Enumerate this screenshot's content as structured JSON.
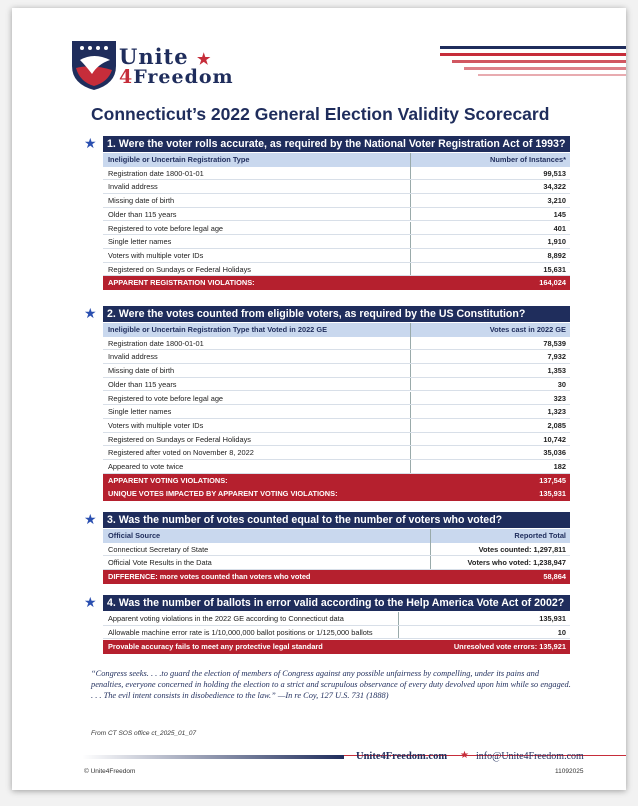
{
  "header": {
    "logo_word1": "Unite",
    "logo_number": "4",
    "logo_word2": "Freedom"
  },
  "title": "Connecticut’s 2022 General Election Validity Scorecard",
  "sections": [
    {
      "question": "1. Were the voter rolls accurate, as required by the National Voter Registration Act of 1993?",
      "columns": [
        "Ineligible or Uncertain Registration Type",
        "Number of Instances*"
      ],
      "rows": [
        [
          "Registration date 1800-01-01",
          "99,513"
        ],
        [
          "Invalid address",
          "34,322"
        ],
        [
          "Missing date of birth",
          "3,210"
        ],
        [
          "Older than 115 years",
          "145"
        ],
        [
          "Registered to vote before legal age",
          "401"
        ],
        [
          "Single letter names",
          "1,910"
        ],
        [
          "Voters with multiple voter IDs",
          "8,892"
        ],
        [
          "Registered on Sundays or Federal Holidays",
          "15,631"
        ]
      ],
      "totals": [
        [
          "APPARENT REGISTRATION VIOLATIONS:",
          "164,024"
        ]
      ]
    },
    {
      "question": "2. Were the votes counted from eligible voters, as required by the US Constitution?",
      "columns": [
        "Ineligible or Uncertain Registration Type that Voted in 2022 GE",
        "Votes cast in 2022 GE"
      ],
      "rows": [
        [
          "Registration date 1800-01-01",
          "78,539"
        ],
        [
          "Invalid address",
          "7,932"
        ],
        [
          "Missing date of birth",
          "1,353"
        ],
        [
          "Older than 115 years",
          "30"
        ],
        [
          "Registered to vote before legal age",
          "323"
        ],
        [
          "Single letter names",
          "1,323"
        ],
        [
          "Voters with multiple voter IDs",
          "2,085"
        ],
        [
          "Registered on Sundays or Federal Holidays",
          "10,742"
        ],
        [
          "Registered after voted on November 8, 2022",
          "35,036"
        ],
        [
          "Appeared to vote twice",
          "182"
        ]
      ],
      "totals": [
        [
          "APPARENT VOTING VIOLATIONS:",
          "137,545"
        ],
        [
          "UNIQUE VOTES IMPACTED BY APPARENT VOTING VIOLATIONS:",
          "135,931"
        ]
      ]
    },
    {
      "question": "3. Was the number of votes counted equal to the number of voters who voted?",
      "columns": [
        "Official Source",
        "Reported Total"
      ],
      "rows": [
        [
          "Connecticut Secretary of State",
          "Votes counted: 1,297,811"
        ],
        [
          "Official Vote Results in the Data",
          "Voters who voted: 1,238,947"
        ]
      ],
      "totals": [
        [
          "DIFFERENCE: more votes counted than voters who voted",
          "58,864"
        ]
      ]
    },
    {
      "question": "4. Was the number of ballots in error valid according to the Help America Vote Act of 2002?",
      "rows": [
        [
          "Apparent voting violations in the 2022 GE according to Connecticut data",
          "135,931"
        ],
        [
          "Allowable machine error rate is 1/10,000,000 ballot positions or 1/125,000 ballots",
          "10"
        ]
      ],
      "totals": [
        [
          "Provable accuracy fails to meet any protective legal standard",
          "Unresolved vote errors: 135,921"
        ]
      ]
    }
  ],
  "quote": {
    "text": "“Congress seeks. . . .to guard the election of members of Congress against any possible unfairness by compelling, under its pains and penalties, everyone concerned in holding the election to a strict and scrupulous observance of every duty devolved upon him while so engaged. . . . The evil intent consists in disobedience to the law.”",
    "citation": "—In re Coy, 127 U.S. 731 (1888)"
  },
  "source": "From CT SOS office ct_2025_01_07",
  "footer": {
    "website": "Unite4Freedom.com",
    "email": "info@Unite4Freedom.com",
    "copyright": "© Unite4Freedom",
    "code": "11092025"
  }
}
